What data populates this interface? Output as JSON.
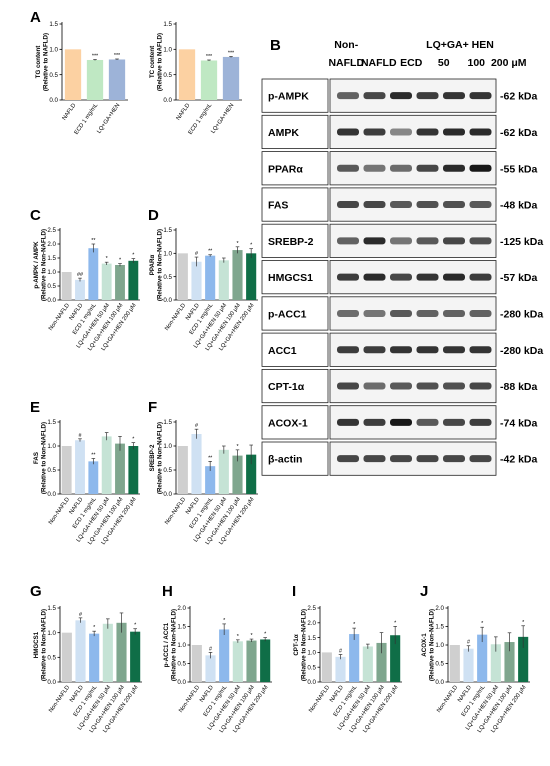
{
  "panel_letters": {
    "A": "A",
    "B": "B",
    "C": "C",
    "D": "D",
    "E": "E",
    "F": "F",
    "G": "G",
    "H": "H",
    "I": "I",
    "J": "J"
  },
  "colors": {
    "non_nafld": "#cfcfcf",
    "nafld": "#cfe1f3",
    "ecd": "#8db8ec",
    "hen50": "#c5e3d5",
    "hen100": "#7fa68e",
    "hen200": "#0f6e47",
    "a_nafld": "#fcd1a2",
    "a_ecd": "#bfe8c3",
    "a_hen": "#9db3d8"
  },
  "blot": {
    "header_groups": [
      {
        "text": "Non-",
        "col": 0,
        "line": 0
      },
      {
        "text": "NAFLD",
        "col": 0,
        "line": 1
      },
      {
        "text": "NAFLD",
        "col": 1,
        "line": 1
      },
      {
        "text": "ECD",
        "col": 2,
        "line": 1
      },
      {
        "text": "LQ+GA+ HEN",
        "col": 3.5,
        "line": 0
      },
      {
        "text": "50",
        "col": 3,
        "line": 1
      },
      {
        "text": "100",
        "col": 4,
        "line": 1
      },
      {
        "text": "200 μM",
        "col": 5,
        "line": 1
      }
    ],
    "rows": [
      {
        "protein": "p-AMPK",
        "kda": "-62 kDa",
        "intensity": [
          0.55,
          0.7,
          0.85,
          0.75,
          0.8,
          0.8
        ]
      },
      {
        "protein": "AMPK",
        "kda": "-62 kDa",
        "intensity": [
          0.8,
          0.75,
          0.35,
          0.8,
          0.85,
          0.85
        ]
      },
      {
        "protein": "PPARα",
        "kda": "-55 kDa",
        "intensity": [
          0.6,
          0.45,
          0.5,
          0.7,
          0.85,
          0.95
        ]
      },
      {
        "protein": "FAS",
        "kda": "-48 kDa",
        "intensity": [
          0.7,
          0.7,
          0.6,
          0.65,
          0.65,
          0.6
        ]
      },
      {
        "protein": "SREBP-2",
        "kda": "-125 kDa",
        "intensity": [
          0.55,
          0.85,
          0.45,
          0.6,
          0.7,
          0.65
        ]
      },
      {
        "protein": "HMGCS1",
        "kda": "-57 kDa",
        "intensity": [
          0.75,
          0.85,
          0.7,
          0.8,
          0.85,
          0.75
        ]
      },
      {
        "protein": "p-ACC1",
        "kda": "-280 kDa",
        "intensity": [
          0.5,
          0.45,
          0.6,
          0.55,
          0.55,
          0.55
        ]
      },
      {
        "protein": "ACC1",
        "kda": "-280 kDa",
        "intensity": [
          0.75,
          0.75,
          0.8,
          0.8,
          0.8,
          0.8
        ]
      },
      {
        "protein": "CPT-1α",
        "kda": "-88 kDa",
        "intensity": [
          0.7,
          0.5,
          0.6,
          0.65,
          0.65,
          0.7
        ]
      },
      {
        "protein": "ACOX-1",
        "kda": "-74 kDa",
        "intensity": [
          0.8,
          0.75,
          0.95,
          0.6,
          0.7,
          0.75
        ]
      },
      {
        "protein": "β-actin",
        "kda": "-42 kDa",
        "intensity": [
          0.7,
          0.7,
          0.7,
          0.7,
          0.7,
          0.7
        ]
      }
    ]
  },
  "chart_data": [
    {
      "id": "A1",
      "type": "bar",
      "categories": [
        "NAFLD",
        "ECD 1 mg/mL",
        "LQ+GA+HEN"
      ],
      "values": [
        1.0,
        0.79,
        0.8
      ],
      "errors": [
        0.0,
        0.01,
        0.01
      ],
      "sig": [
        "",
        "***",
        "***"
      ],
      "ylabel_lines": [
        "TG content",
        "(Relative to NAFLD)"
      ],
      "ylim": [
        0,
        1.5
      ],
      "yticks": [
        "0.0",
        "0.5",
        "1.0",
        "1.5"
      ],
      "colors": [
        "#fcd1a2",
        "#bfe8c3",
        "#9db3d8"
      ]
    },
    {
      "id": "A2",
      "type": "bar",
      "categories": [
        "NAFLD",
        "ECD 1 mg/mL",
        "LQ+GA+HEN"
      ],
      "values": [
        1.0,
        0.78,
        0.85
      ],
      "errors": [
        0.0,
        0.01,
        0.01
      ],
      "sig": [
        "",
        "***",
        "***"
      ],
      "ylabel_lines": [
        "TC content",
        "(Relative to NAFLD)"
      ],
      "ylim": [
        0,
        1.5
      ],
      "yticks": [
        "0.0",
        "0.5",
        "1.0",
        "1.5"
      ],
      "colors": [
        "#fcd1a2",
        "#bfe8c3",
        "#9db3d8"
      ]
    },
    {
      "id": "C",
      "type": "bar",
      "categories": [
        "Non-NAFLD",
        "NAFLD",
        "ECD 1 mg/mL",
        "LQ+GA+HEN 50 μM",
        "LQ+GA+HEN 100 μM",
        "LQ+GA+HEN 200 μM"
      ],
      "values": [
        1.0,
        0.72,
        1.85,
        1.3,
        1.25,
        1.4
      ],
      "errors": [
        0.0,
        0.06,
        0.15,
        0.05,
        0.05,
        0.08
      ],
      "sig": [
        "",
        "##",
        "**",
        "*",
        "*",
        "*"
      ],
      "ylabel_lines": [
        "p-AMPK / AMPK",
        "(Relative to Non-NAFLD)"
      ],
      "ylim": [
        0,
        2.5
      ],
      "yticks": [
        "0.0",
        "0.5",
        "1.0",
        "1.5",
        "2.0",
        "2.5"
      ],
      "colors": [
        "#cfcfcf",
        "#cfe1f3",
        "#8db8ec",
        "#c5e3d5",
        "#7fa68e",
        "#0f6e47"
      ]
    },
    {
      "id": "D",
      "type": "bar",
      "categories": [
        "Non-NAFLD",
        "NAFLD",
        "ECD 1 mg/mL",
        "LQ+GA+HEN 50 μM",
        "LQ+GA+HEN 100 μM",
        "LQ+GA+HEN 200 μM"
      ],
      "values": [
        1.0,
        0.82,
        0.95,
        0.85,
        1.07,
        1.0
      ],
      "errors": [
        0.0,
        0.1,
        0.02,
        0.05,
        0.07,
        0.1
      ],
      "sig": [
        "",
        "#",
        "**",
        "",
        "*",
        "*"
      ],
      "ylabel_lines": [
        "PPARα",
        "(Relative to Non-NAFLD)"
      ],
      "ylim": [
        0,
        1.5
      ],
      "yticks": [
        "0.0",
        "0.5",
        "1.0",
        "1.5"
      ],
      "colors": [
        "#cfcfcf",
        "#cfe1f3",
        "#8db8ec",
        "#c5e3d5",
        "#7fa68e",
        "#0f6e47"
      ]
    },
    {
      "id": "E",
      "type": "bar",
      "categories": [
        "Non-NAFLD",
        "NAFLD",
        "ECD 1 mg/mL",
        "LQ+GA+HEN 50 μM",
        "LQ+GA+HEN 100 μM",
        "LQ+GA+HEN 200 μM"
      ],
      "values": [
        1.0,
        1.12,
        0.68,
        1.2,
        1.05,
        1.0
      ],
      "errors": [
        0.0,
        0.03,
        0.06,
        0.08,
        0.15,
        0.07
      ],
      "sig": [
        "",
        "#",
        "**",
        "",
        "",
        "*"
      ],
      "ylabel_lines": [
        "FAS",
        "(Relative to Non-NAFLD)"
      ],
      "ylim": [
        0,
        1.5
      ],
      "yticks": [
        "0.0",
        "0.5",
        "1.0",
        "1.5"
      ],
      "colors": [
        "#cfcfcf",
        "#cfe1f3",
        "#8db8ec",
        "#c5e3d5",
        "#7fa68e",
        "#0f6e47"
      ]
    },
    {
      "id": "F",
      "type": "bar",
      "categories": [
        "Non-NAFLD",
        "NAFLD",
        "ECD 1 mg/mL",
        "LQ+GA+HEN 50 μM",
        "LQ+GA+HEN 100 μM",
        "LQ+GA+HEN 200 μM"
      ],
      "values": [
        1.0,
        1.25,
        0.58,
        0.92,
        0.8,
        0.82
      ],
      "errors": [
        0.0,
        0.1,
        0.1,
        0.08,
        0.12,
        0.2
      ],
      "sig": [
        "",
        "#",
        "**",
        "",
        "*",
        ""
      ],
      "ylabel_lines": [
        "SREBP-2",
        "(Relative to Non-NAFLD)"
      ],
      "ylim": [
        0,
        1.5
      ],
      "yticks": [
        "0.0",
        "0.5",
        "1.0",
        "1.5"
      ],
      "colors": [
        "#cfcfcf",
        "#cfe1f3",
        "#8db8ec",
        "#c5e3d5",
        "#7fa68e",
        "#0f6e47"
      ]
    },
    {
      "id": "G",
      "type": "bar",
      "categories": [
        "Non-NAFLD",
        "NAFLD",
        "ECD 1 mg/mL",
        "LQ+GA+HEN 50 μM",
        "LQ+GA+HEN 100 μM",
        "LQ+GA+HEN 200 μM"
      ],
      "values": [
        1.0,
        1.25,
        0.98,
        1.18,
        1.2,
        1.02
      ],
      "errors": [
        0.0,
        0.05,
        0.05,
        0.1,
        0.2,
        0.06
      ],
      "sig": [
        "",
        "#",
        "*",
        "",
        "",
        "*"
      ],
      "ylabel_lines": [
        "HMGCS1",
        "(Relative to Non-NAFLD)"
      ],
      "ylim": [
        0,
        1.5
      ],
      "yticks": [
        "0.0",
        "0.5",
        "1.0",
        "1.5"
      ],
      "colors": [
        "#cfcfcf",
        "#cfe1f3",
        "#8db8ec",
        "#c5e3d5",
        "#7fa68e",
        "#0f6e47"
      ]
    },
    {
      "id": "H",
      "type": "bar",
      "categories": [
        "Non-NAFLD",
        "NAFLD",
        "ECD 1 mg/mL",
        "LQ+GA+HEN 50 μM",
        "LQ+GA+HEN 100 μM",
        "LQ+GA+HEN 200 μM"
      ],
      "values": [
        1.0,
        0.72,
        1.42,
        1.1,
        1.12,
        1.15
      ],
      "errors": [
        0.0,
        0.08,
        0.15,
        0.04,
        0.04,
        0.05
      ],
      "sig": [
        "",
        "#",
        "*",
        "*",
        "*",
        "*"
      ],
      "ylabel_lines": [
        "p-ACC1 / ACC1",
        "(Relative to Non-NAFLD)"
      ],
      "ylim": [
        0,
        2.0
      ],
      "yticks": [
        "0.0",
        "0.5",
        "1.0",
        "1.5",
        "2.0"
      ],
      "colors": [
        "#cfcfcf",
        "#cfe1f3",
        "#8db8ec",
        "#c5e3d5",
        "#7fa68e",
        "#0f6e47"
      ]
    },
    {
      "id": "I",
      "type": "bar",
      "categories": [
        "Non-NAFLD",
        "NAFLD",
        "ECD 1 mg/mL",
        "LQ+GA+HEN 50 μM",
        "LQ+GA+HEN 100 μM",
        "LQ+GA+HEN 200 μM"
      ],
      "values": [
        1.0,
        0.85,
        1.62,
        1.2,
        1.32,
        1.58
      ],
      "errors": [
        0.0,
        0.08,
        0.2,
        0.08,
        0.35,
        0.3
      ],
      "sig": [
        "",
        "#",
        "*",
        "",
        "",
        "*"
      ],
      "ylabel_lines": [
        "CPT-1α",
        "(Relative to Non-NAFLD)"
      ],
      "ylim": [
        0,
        2.5
      ],
      "yticks": [
        "0.0",
        "0.5",
        "1.0",
        "1.5",
        "2.0",
        "2.5"
      ],
      "colors": [
        "#cfcfcf",
        "#cfe1f3",
        "#8db8ec",
        "#c5e3d5",
        "#7fa68e",
        "#0f6e47"
      ]
    },
    {
      "id": "J",
      "type": "bar",
      "categories": [
        "Non-NAFLD",
        "NAFLD",
        "ECD 1 mg/mL",
        "LQ+GA+HEN 50 μM",
        "LQ+GA+HEN 100 μM",
        "LQ+GA+HEN 200 μM"
      ],
      "values": [
        1.0,
        0.9,
        1.28,
        1.02,
        1.08,
        1.22
      ],
      "errors": [
        0.0,
        0.08,
        0.2,
        0.2,
        0.25,
        0.3
      ],
      "sig": [
        "",
        "#",
        "*",
        "",
        "",
        "*"
      ],
      "ylabel_lines": [
        "ACOX-1",
        "(Relative to Non-NAFLD)"
      ],
      "ylim": [
        0,
        2.0
      ],
      "yticks": [
        "0.0",
        "0.5",
        "1.0",
        "1.5",
        "2.0"
      ],
      "colors": [
        "#cfcfcf",
        "#cfe1f3",
        "#8db8ec",
        "#c5e3d5",
        "#7fa68e",
        "#0f6e47"
      ]
    }
  ]
}
